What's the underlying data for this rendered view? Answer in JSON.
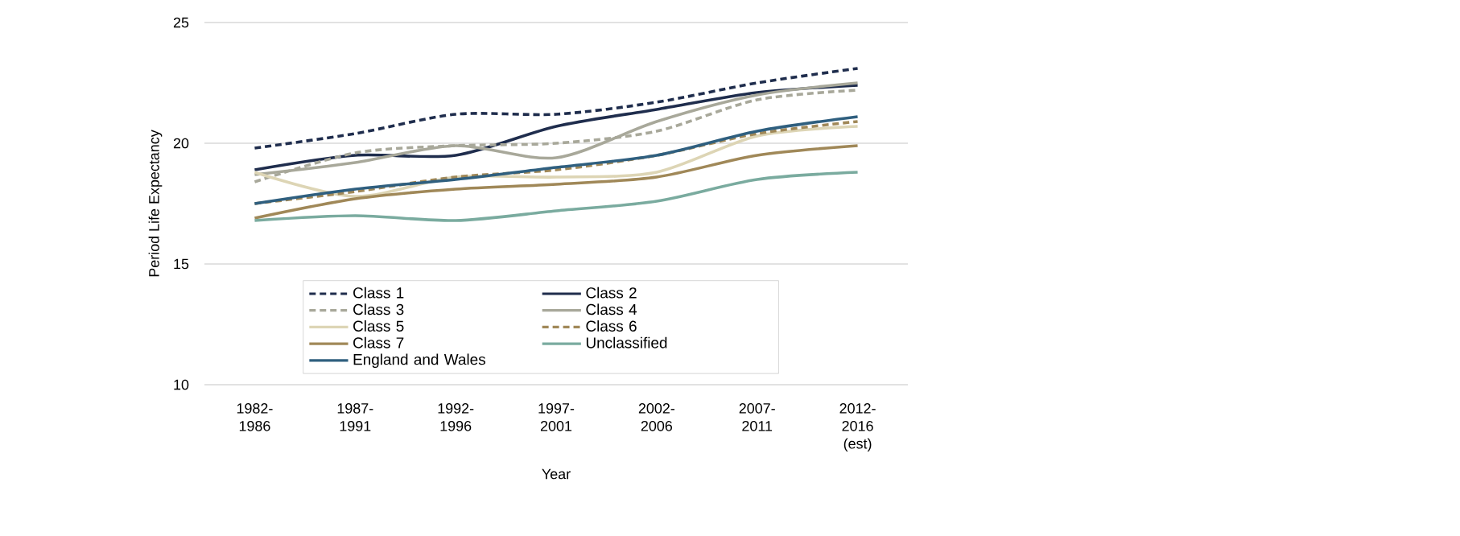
{
  "chart_data": {
    "type": "line",
    "xlabel": "Year",
    "ylabel": "Period Life Expectancy",
    "categories": [
      "1982-1986",
      "1987-1991",
      "1992-1996",
      "1997-2001",
      "2002-2006",
      "2007-2011",
      "2012-2016 (est)"
    ],
    "ylim": [
      10,
      25
    ],
    "yticks": [
      10,
      15,
      20,
      25
    ],
    "grid": "y",
    "legend": "bottom",
    "marker": "none",
    "series": [
      {
        "name": "Class 1",
        "color": "#1f2d4d",
        "line_style": "dashed",
        "values": [
          19.8,
          20.4,
          21.2,
          21.2,
          21.7,
          22.5,
          23.1
        ]
      },
      {
        "name": "Class 2",
        "color": "#1f2d4d",
        "line_style": "solid",
        "values": [
          18.9,
          19.5,
          19.5,
          20.7,
          21.4,
          22.1,
          22.4
        ]
      },
      {
        "name": "Class 3",
        "color": "#a8a89a",
        "line_style": "dashed",
        "values": [
          18.4,
          19.6,
          19.9,
          20.0,
          20.5,
          21.8,
          22.2
        ]
      },
      {
        "name": "Class 4",
        "color": "#a8a89a",
        "line_style": "solid",
        "values": [
          18.7,
          19.2,
          19.9,
          19.4,
          20.9,
          22.0,
          22.5
        ]
      },
      {
        "name": "Class 5",
        "color": "#ddd5b5",
        "line_style": "solid",
        "values": [
          18.8,
          17.8,
          18.6,
          18.6,
          18.8,
          20.3,
          20.7
        ]
      },
      {
        "name": "Class 6",
        "color": "#a08858",
        "line_style": "dashed",
        "values": [
          17.5,
          18.0,
          18.6,
          18.9,
          19.5,
          20.4,
          20.9
        ]
      },
      {
        "name": "Class 7",
        "color": "#a08858",
        "line_style": "solid",
        "values": [
          16.9,
          17.7,
          18.1,
          18.3,
          18.6,
          19.5,
          19.9
        ]
      },
      {
        "name": "Unclassified",
        "color": "#7aab9f",
        "line_style": "solid",
        "values": [
          16.8,
          17.0,
          16.8,
          17.2,
          17.6,
          18.5,
          18.8
        ]
      },
      {
        "name": "England and Wales",
        "color": "#2f5f7f",
        "line_style": "solid",
        "values": [
          17.5,
          18.1,
          18.5,
          19.0,
          19.5,
          20.5,
          21.1
        ]
      }
    ]
  }
}
